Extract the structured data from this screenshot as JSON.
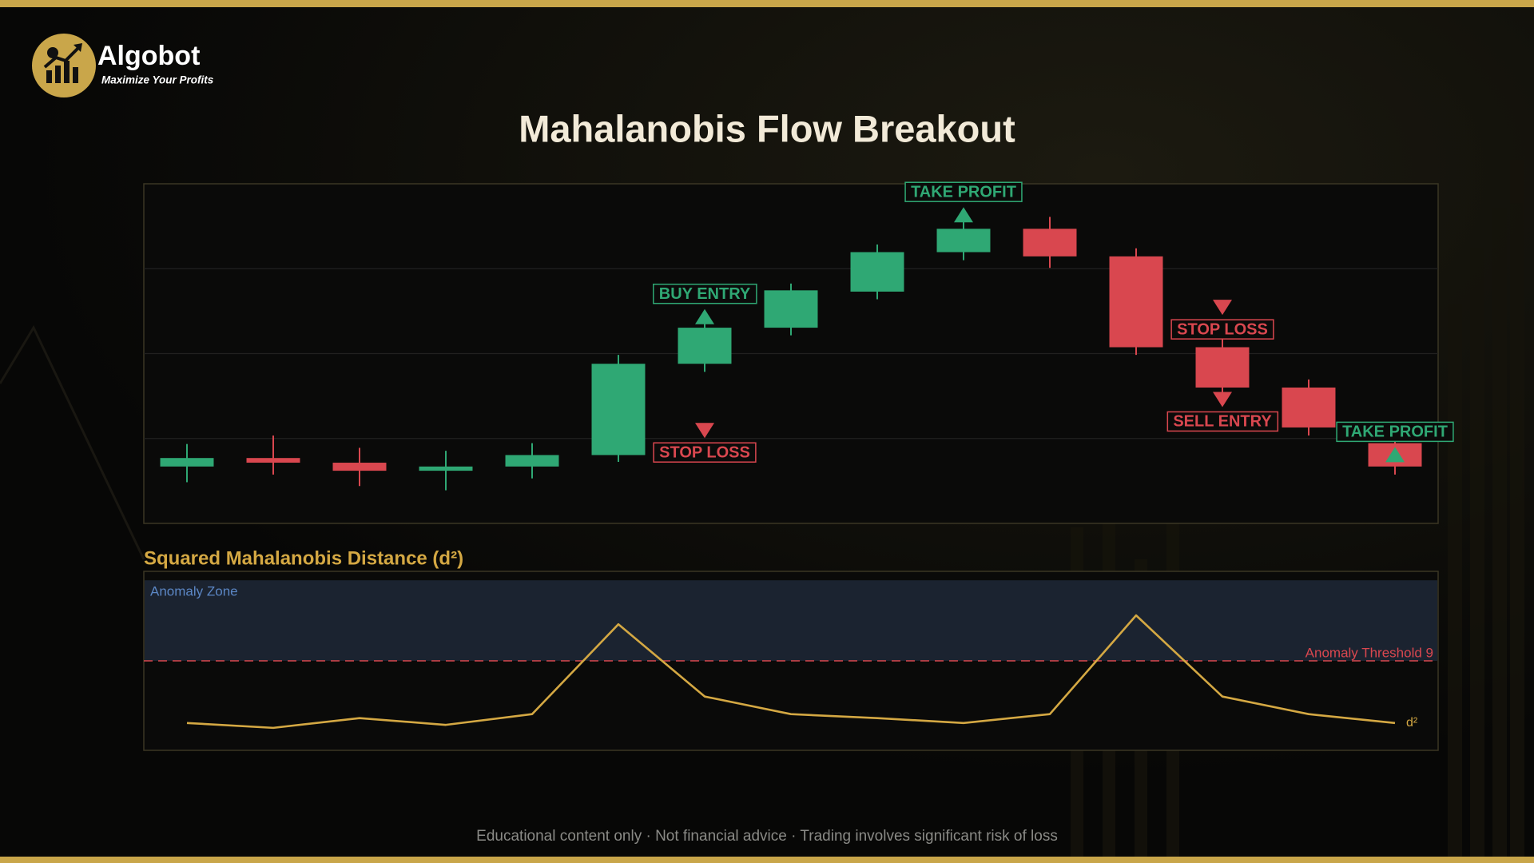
{
  "header": {
    "brand": "Algobot",
    "tagline": "Maximize Your Profits"
  },
  "footer": "Educational content only  ·  Not financial advice  ·  Trading involves significant risk of loss",
  "chart_data": [
    {
      "type": "candlestick",
      "title": "Mahalanobis Flow Breakout",
      "open": [
        97.34,
        97.54,
        97.43,
        97.24,
        97.34,
        97.61,
        99.76,
        100.61,
        101.46,
        102.39,
        102.94,
        102.29,
        100.15,
        99.2,
        97.89
      ],
      "high": [
        97.87,
        98.07,
        97.78,
        97.71,
        97.89,
        99.97,
        100.73,
        101.65,
        102.57,
        103.12,
        103.22,
        102.48,
        100.38,
        99.39,
        98.07
      ],
      "low": [
        96.97,
        97.15,
        96.88,
        96.78,
        97.06,
        97.45,
        99.57,
        100.43,
        101.28,
        102.2,
        102.02,
        99.97,
        99.0,
        98.07,
        97.15
      ],
      "close": [
        97.54,
        97.43,
        97.24,
        97.34,
        97.61,
        99.76,
        100.61,
        101.49,
        102.39,
        102.94,
        102.29,
        100.15,
        99.2,
        98.26,
        97.34
      ],
      "up_color": "#2fa874",
      "down_color": "#d9474f",
      "ylim": [
        96,
        104
      ],
      "yticks": [
        98,
        100,
        102
      ],
      "grid": true,
      "annotations": [
        {
          "text": "BUY ENTRY",
          "x": 6,
          "value": 101.05,
          "direction": "up",
          "color": "#2fa874"
        },
        {
          "text": "STOP LOSS",
          "x": 6,
          "value": 98.01,
          "direction": "down",
          "color": "#d9474f"
        },
        {
          "text": "TAKE PROFIT",
          "x": 9,
          "value": 103.45,
          "direction": "up",
          "color": "#2fa874"
        },
        {
          "text": "STOP LOSS",
          "x": 12,
          "value": 100.91,
          "direction": "down",
          "color": "#d9474f"
        },
        {
          "text": "SELL ENTRY",
          "x": 12,
          "value": 98.74,
          "direction": "down",
          "color": "#d9474f"
        },
        {
          "text": "TAKE PROFIT",
          "x": 14,
          "value": 97.8,
          "direction": "up",
          "color": "#2fa874"
        }
      ]
    },
    {
      "type": "line",
      "title": "Squared Mahalanobis Distance (d²)",
      "series": [
        {
          "name": "d²",
          "color": "#d4a843",
          "values": [
            2.75,
            2.26,
            3.24,
            2.56,
            3.64,
            12.68,
            5.41,
            3.64,
            3.24,
            2.75,
            3.64,
            13.57,
            5.41,
            3.64,
            2.75
          ]
        }
      ],
      "ylim": [
        0,
        18
      ],
      "zone": {
        "label": "Anomaly Zone",
        "range": [
          9,
          17.1
        ],
        "color": "#1b2330"
      },
      "threshold": {
        "value": 9,
        "label": "Anomaly Threshold 9",
        "color": "#d9474f"
      }
    }
  ]
}
